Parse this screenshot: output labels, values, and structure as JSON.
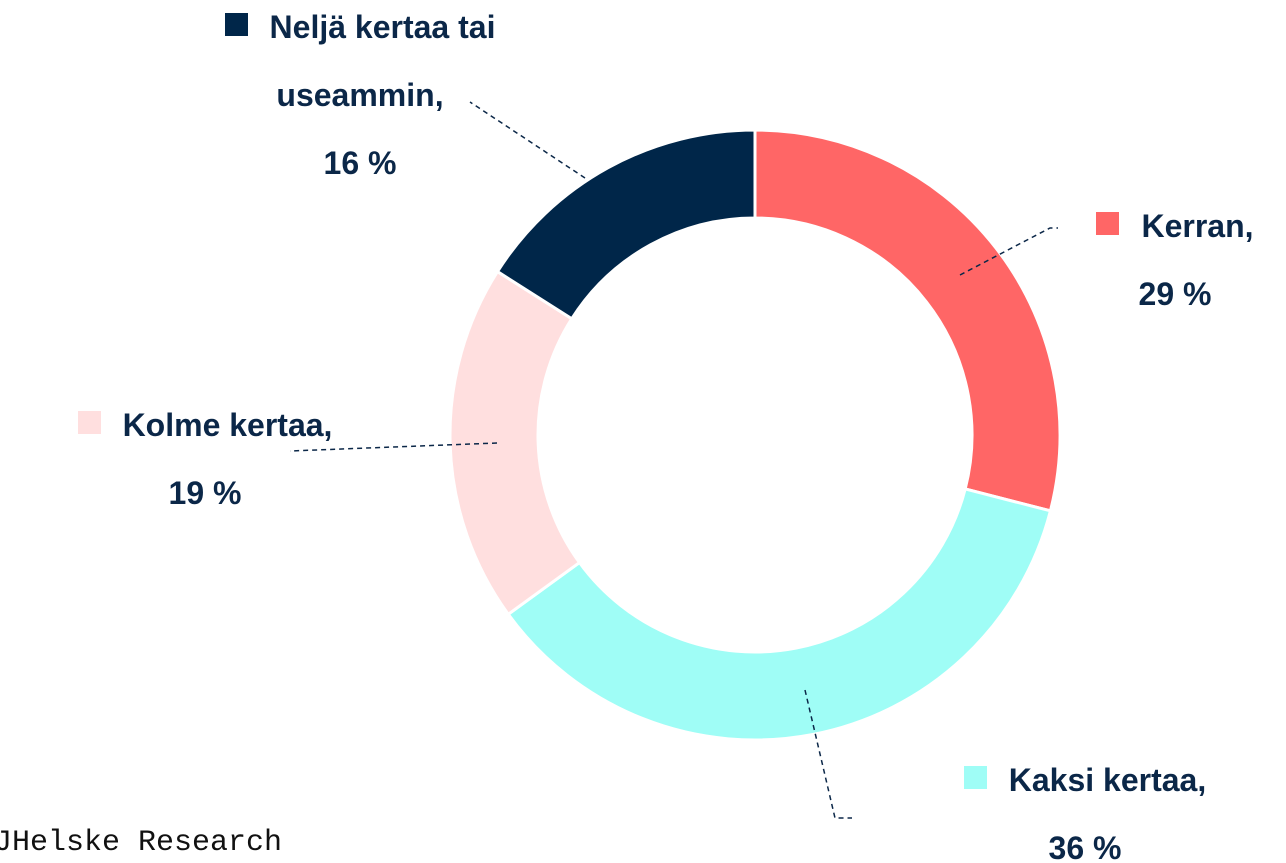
{
  "chart_data": {
    "type": "donut",
    "categories": [
      "Kerran,",
      "Kaksi kertaa,",
      "Kolme kertaa,",
      "Neljä kertaa tai useammin,"
    ],
    "values": [
      29,
      36,
      19,
      16
    ],
    "value_labels": [
      "29 %",
      "36 %",
      "19 %",
      "16 %"
    ],
    "colors": [
      "#ff6666",
      "#9ffdf6",
      "#ffdfdf",
      "#002649"
    ],
    "source": "JHelske Research"
  }
}
